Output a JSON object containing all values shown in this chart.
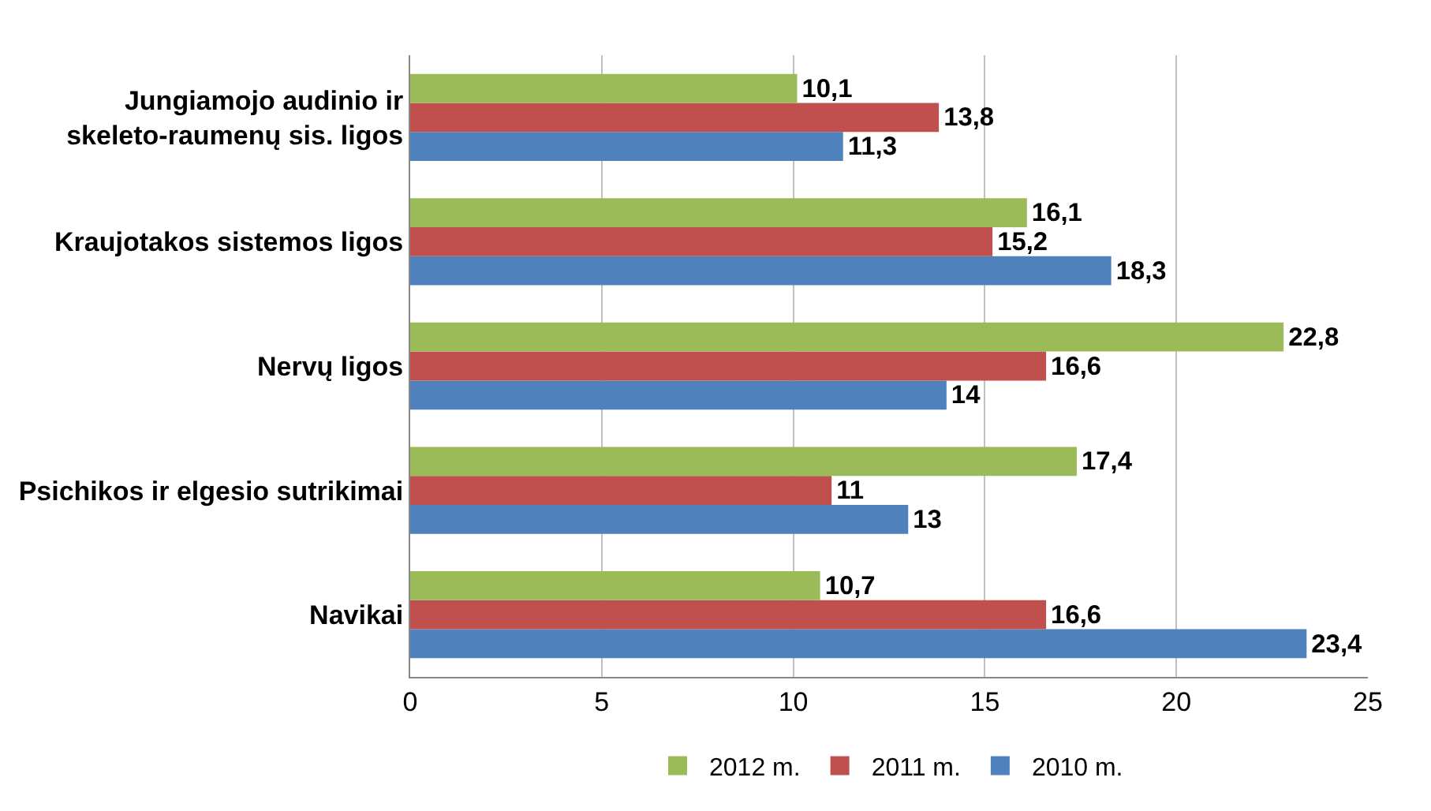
{
  "chart_data": {
    "type": "bar",
    "orientation": "horizontal",
    "categories": [
      "Jungiamojo audinio ir skeleto-raumenų sis. ligos",
      "Kraujotakos sistemos ligos",
      "Nervų ligos",
      "Psichikos ir elgesio sutrikimai",
      "Navikai"
    ],
    "series": [
      {
        "name": "2012 m.",
        "color": "#9bbb59",
        "values": [
          10.1,
          16.1,
          22.8,
          17.4,
          10.7
        ],
        "value_labels": [
          "10,1",
          "16,1",
          "22,8",
          "17,4",
          "10,7"
        ]
      },
      {
        "name": "2011 m.",
        "color": "#c0504d",
        "values": [
          13.8,
          15.2,
          16.6,
          11,
          16.6
        ],
        "value_labels": [
          "13,8",
          "15,2",
          "16,6",
          "11",
          "16,6"
        ]
      },
      {
        "name": "2010 m.",
        "color": "#4f81bd",
        "values": [
          11.3,
          18.3,
          14,
          13,
          23.4
        ],
        "value_labels": [
          "11,3",
          "18,3",
          "14",
          "13",
          "23,4"
        ]
      }
    ],
    "xlim": [
      0,
      25
    ],
    "xticks": [
      0,
      5,
      10,
      15,
      20,
      25
    ],
    "grid": "x",
    "legend": "bottom"
  }
}
